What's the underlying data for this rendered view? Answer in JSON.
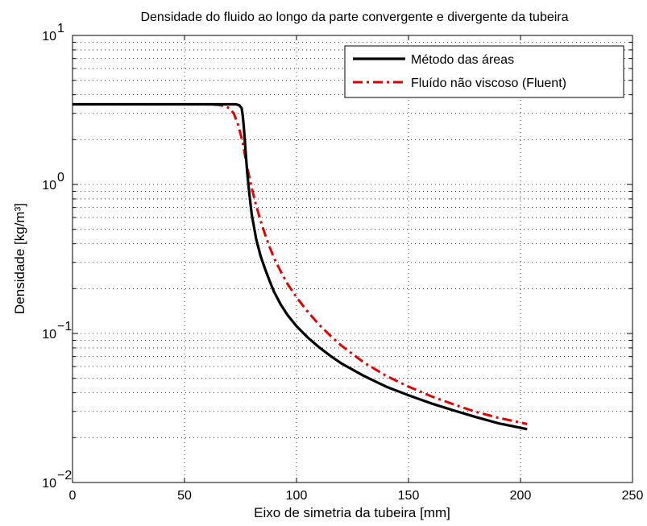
{
  "chart_data": {
    "type": "line",
    "title": "Densidade do fluido ao longo da parte convergente e divergente da tubeira",
    "xlabel": "Eixo de simetria da tubeira [mm]",
    "ylabel": "Densidade  [kg/m³]",
    "xlim": [
      0,
      250
    ],
    "ylim": [
      0.01,
      10
    ],
    "yscale": "log",
    "grid": true,
    "legend_position": "top-right",
    "x_ticks": [
      {
        "value": 0,
        "label": "0"
      },
      {
        "value": 50,
        "label": "50"
      },
      {
        "value": 100,
        "label": "100"
      },
      {
        "value": 150,
        "label": "150"
      },
      {
        "value": 200,
        "label": "200"
      },
      {
        "value": 250,
        "label": "250"
      }
    ],
    "y_ticks": [
      {
        "value": 0.01,
        "base": "10",
        "exp": "−2"
      },
      {
        "value": 0.1,
        "base": "10",
        "exp": "−1"
      },
      {
        "value": 1,
        "base": "10",
        "exp": "0"
      },
      {
        "value": 10,
        "base": "10",
        "exp": "1"
      }
    ],
    "series": [
      {
        "name": "Método das áreas",
        "color": "#000000",
        "style": "solid",
        "x": [
          0,
          50,
          70,
          73,
          74.5,
          75.5,
          76,
          76.5,
          77,
          77.5,
          78,
          79,
          80,
          82,
          84,
          86,
          88,
          90,
          93,
          96,
          100,
          105,
          110,
          115,
          120,
          130,
          140,
          150,
          160,
          170,
          180,
          190,
          203
        ],
        "y": [
          3.45,
          3.45,
          3.45,
          3.45,
          3.4,
          3.25,
          2.9,
          2.4,
          1.9,
          1.5,
          1.2,
          0.85,
          0.63,
          0.43,
          0.33,
          0.27,
          0.225,
          0.19,
          0.156,
          0.133,
          0.112,
          0.094,
          0.081,
          0.071,
          0.063,
          0.052,
          0.044,
          0.0385,
          0.034,
          0.0305,
          0.0275,
          0.025,
          0.0228
        ]
      },
      {
        "name": "Fluído não viscoso (Fluent)",
        "color": "#dd0000",
        "style": "dashdot",
        "x": [
          0,
          50,
          60,
          65,
          68,
          70,
          72,
          74,
          76,
          78,
          80,
          82,
          84,
          86,
          88,
          90,
          93,
          96,
          100,
          105,
          110,
          115,
          120,
          130,
          140,
          150,
          160,
          170,
          180,
          190,
          203
        ],
        "y": [
          3.45,
          3.45,
          3.45,
          3.42,
          3.35,
          3.25,
          3.0,
          2.5,
          1.9,
          1.3,
          0.95,
          0.72,
          0.57,
          0.46,
          0.38,
          0.32,
          0.26,
          0.215,
          0.175,
          0.14,
          0.115,
          0.097,
          0.083,
          0.064,
          0.052,
          0.044,
          0.038,
          0.0335,
          0.0298,
          0.0272,
          0.0247
        ]
      }
    ]
  }
}
